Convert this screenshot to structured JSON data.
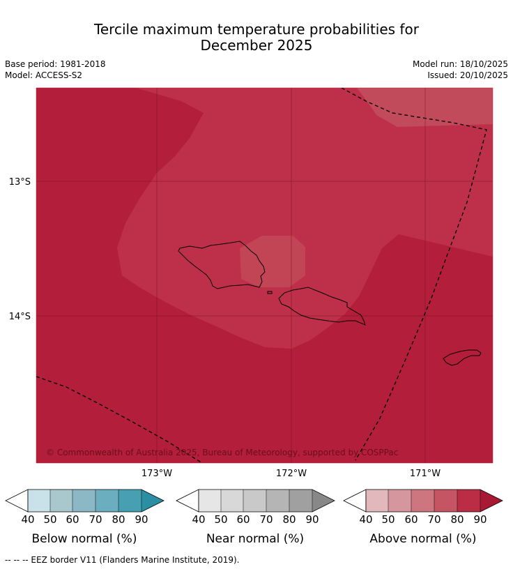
{
  "title_line1": "Tercile maximum temperature probabilities for",
  "title_line2": "December 2025",
  "meta": {
    "base_period": "Base period: 1981-2018",
    "model": "Model: ACCESS-S2",
    "model_run": "Model run: 18/10/2025",
    "issued": "Issued: 20/10/2025"
  },
  "map": {
    "lat_labels": [
      "13°S",
      "14°S"
    ],
    "lon_labels": [
      "173°W",
      "172°W",
      "171°W"
    ],
    "copyright": "© Commonwealth of Australia 2025, Bureau of Meteorology, supported by COSPPac",
    "colors": {
      "above_80_90": "#b31e3a",
      "above_70_80": "#c0344c",
      "above_60_70": "#c64e5e",
      "ocean_grid": "#7a1020"
    }
  },
  "legends": [
    {
      "name": "below",
      "label": "Below normal (%)",
      "ticks": [
        "40",
        "50",
        "60",
        "70",
        "80",
        "90"
      ],
      "colors": [
        "#c9e1e8",
        "#a8c8ce",
        "#8bb8c4",
        "#6aaebf",
        "#46a0b2",
        "#2c8ea3"
      ]
    },
    {
      "name": "near",
      "label": "Near normal (%)",
      "ticks": [
        "40",
        "50",
        "60",
        "70",
        "80",
        "90"
      ],
      "colors": [
        "#e6e6e6",
        "#d8d8d8",
        "#c9c9c9",
        "#b5b5b5",
        "#a0a0a0",
        "#888888"
      ]
    },
    {
      "name": "above",
      "label": "Above normal (%)",
      "ticks": [
        "40",
        "50",
        "60",
        "70",
        "80",
        "90"
      ],
      "colors": [
        "#e3b8bd",
        "#d5969d",
        "#cd767f",
        "#c55563",
        "#bb2d45",
        "#a81a34"
      ]
    }
  ],
  "footer": "--  --  -- EEZ border V11 (Flanders Marine Institute, 2019)."
}
